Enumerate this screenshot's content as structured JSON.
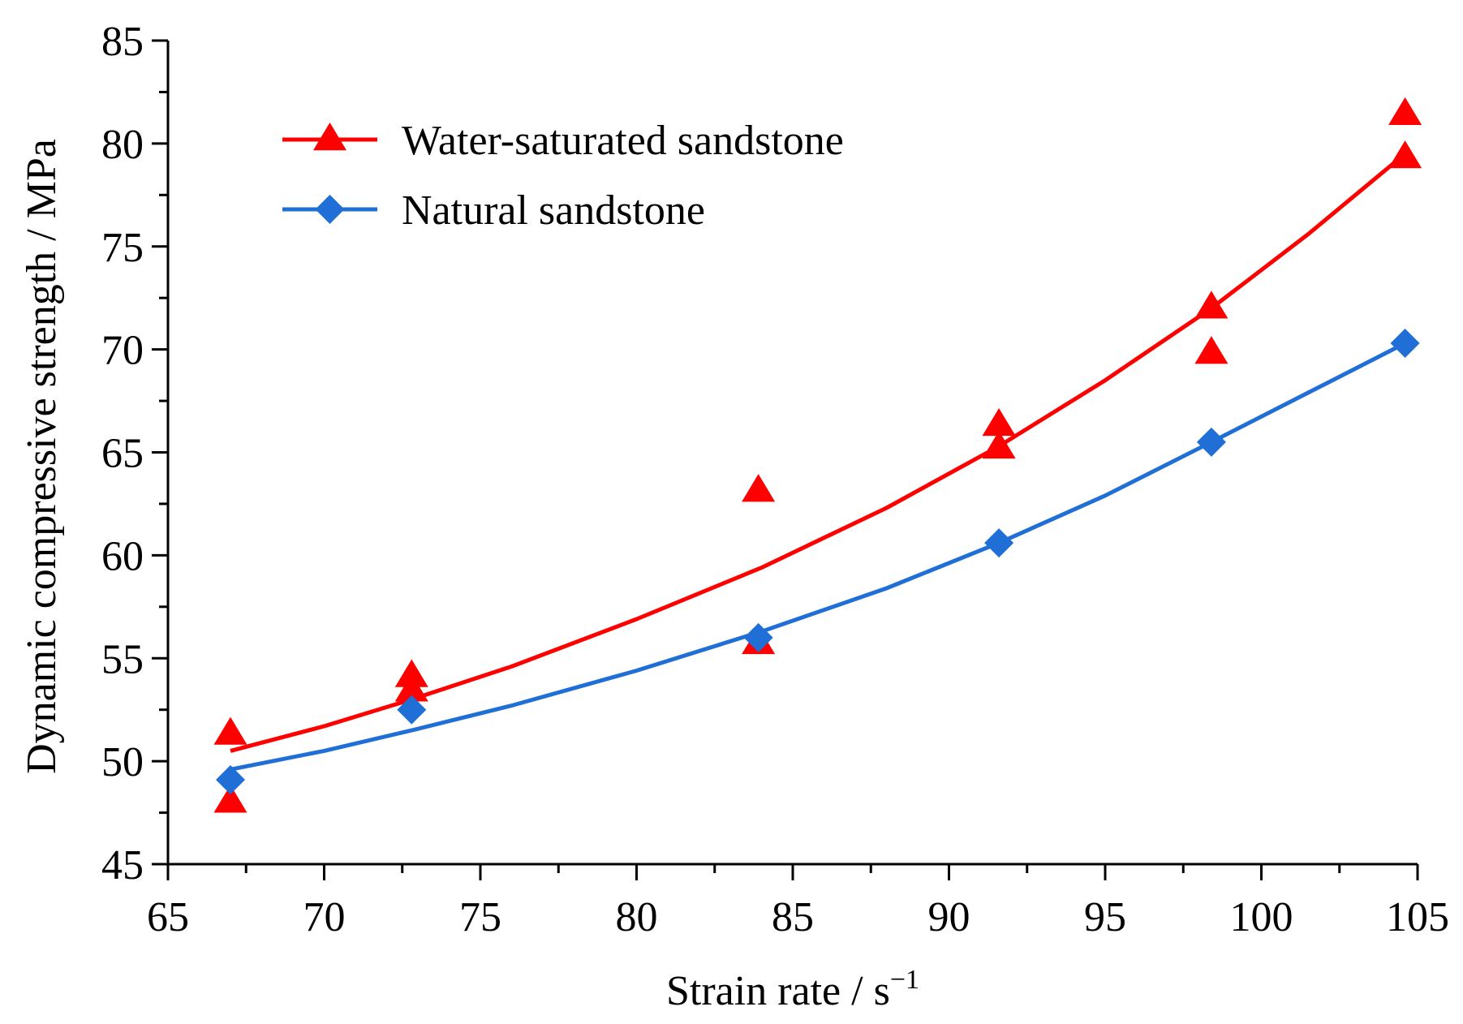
{
  "chart_data": {
    "type": "scatter",
    "title": "",
    "xlabel": "Strain rate / s",
    "xlabel_sup": "−1",
    "ylabel": "Dynamic compressive strength / MPa",
    "xlim": [
      65,
      105
    ],
    "ylim": [
      45,
      85
    ],
    "xticks": [
      65,
      70,
      75,
      80,
      85,
      90,
      95,
      100,
      105
    ],
    "yticks": [
      45,
      50,
      55,
      60,
      65,
      70,
      75,
      80,
      85
    ],
    "x_minor_step": 2.5,
    "y_minor_step": 2.5,
    "legend_position": "top-left",
    "series": [
      {
        "name": "Water-saturated sandstone",
        "color": "#ff0000",
        "marker": "triangle",
        "points": [
          {
            "x": 67.0,
            "y": 51.4
          },
          {
            "x": 67.0,
            "y": 48.1
          },
          {
            "x": 72.8,
            "y": 54.2
          },
          {
            "x": 72.8,
            "y": 53.5
          },
          {
            "x": 83.9,
            "y": 63.2
          },
          {
            "x": 83.9,
            "y": 55.8
          },
          {
            "x": 91.6,
            "y": 66.4
          },
          {
            "x": 91.6,
            "y": 65.3
          },
          {
            "x": 98.4,
            "y": 72.1
          },
          {
            "x": 98.4,
            "y": 69.9
          },
          {
            "x": 104.6,
            "y": 81.5
          },
          {
            "x": 104.6,
            "y": 79.4
          }
        ],
        "fit": {
          "x": [
            67.0,
            70.0,
            72.8,
            76.0,
            80.0,
            84.0,
            88.0,
            91.6,
            95.0,
            98.4,
            101.5,
            104.6
          ],
          "y": [
            50.5,
            51.7,
            53.0,
            54.6,
            56.9,
            59.4,
            62.3,
            65.3,
            68.5,
            72.0,
            75.6,
            79.5
          ]
        }
      },
      {
        "name": "Natural sandstone",
        "color": "#1f6fd6",
        "marker": "diamond",
        "points": [
          {
            "x": 67.0,
            "y": 49.1
          },
          {
            "x": 72.8,
            "y": 52.5
          },
          {
            "x": 83.9,
            "y": 56.0
          },
          {
            "x": 91.6,
            "y": 60.6
          },
          {
            "x": 98.4,
            "y": 65.5
          },
          {
            "x": 104.6,
            "y": 70.3
          }
        ],
        "fit": {
          "x": [
            67.0,
            70.0,
            72.8,
            76.0,
            80.0,
            84.0,
            88.0,
            91.6,
            95.0,
            98.4,
            101.5,
            104.6
          ],
          "y": [
            49.6,
            50.5,
            51.5,
            52.7,
            54.4,
            56.3,
            58.4,
            60.6,
            62.9,
            65.5,
            67.9,
            70.3
          ]
        }
      }
    ]
  }
}
